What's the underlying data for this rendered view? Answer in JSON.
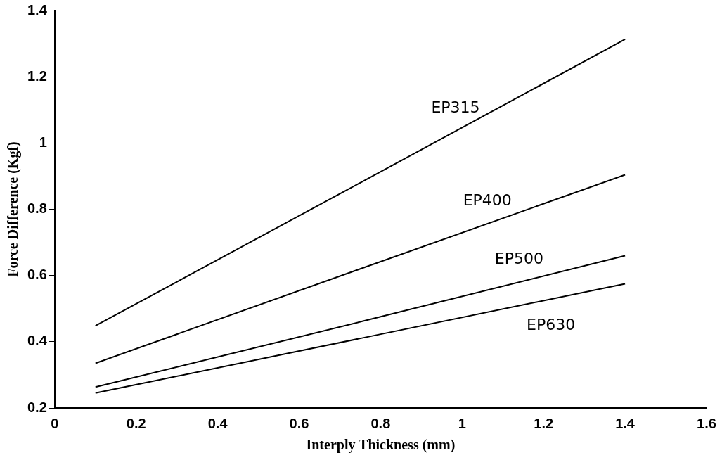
{
  "chart_data": {
    "type": "line",
    "xlabel": "Interply Thickness (mm)",
    "ylabel": "Force Difference (Kgf)",
    "xlim": [
      0,
      1.6
    ],
    "xticks": [
      0,
      0.2,
      0.4,
      0.6,
      0.8,
      1,
      1.2,
      1.4,
      1.6
    ],
    "ylim": [
      0.2,
      1.4
    ],
    "yticks": [
      0.2,
      0.4,
      0.6,
      0.8,
      1,
      1.2,
      1.4
    ],
    "grid": false,
    "legend": false,
    "marker": "none",
    "line_style": "solid",
    "x": [
      0.1,
      0.75,
      1.4
    ],
    "series": [
      {
        "name": "EP315",
        "color": "#000000",
        "values": [
          0.448,
          0.88,
          1.313
        ]
      },
      {
        "name": "EP400",
        "color": "#000000",
        "values": [
          0.335,
          0.62,
          0.904
        ]
      },
      {
        "name": "EP500",
        "color": "#000000",
        "values": [
          0.263,
          0.46,
          0.66
        ]
      },
      {
        "name": "EP630",
        "color": "#000000",
        "values": [
          0.245,
          0.41,
          0.575
        ]
      }
    ]
  }
}
